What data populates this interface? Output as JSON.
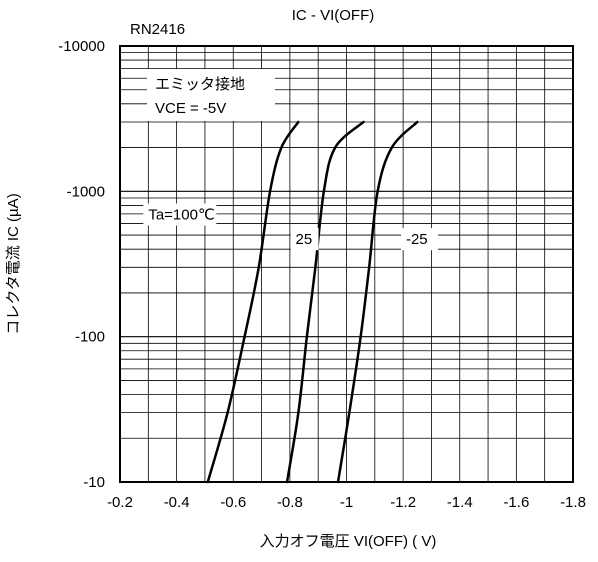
{
  "chart_data": {
    "type": "line",
    "title": "IC - VI(OFF)",
    "subtitle": "RN2416",
    "xlabel": "入力オフ電圧 VI(OFF) ( V)",
    "ylabel": "コレクタ電流 IC (µA)",
    "xlim": [
      -0.2,
      -1.8
    ],
    "ylim": [
      -10,
      -10000
    ],
    "yscale": "log",
    "grid": true,
    "x_ticks": [
      -0.2,
      -0.4,
      -0.6,
      -0.8,
      -1.0,
      -1.2,
      -1.4,
      -1.6,
      -1.8
    ],
    "x_tick_labels": [
      "-0.2",
      "-0.4",
      "-0.6",
      "-0.8",
      "-1",
      "-1.2",
      "-1.4",
      "-1.6",
      "-1.8"
    ],
    "y_ticks": [
      -10,
      -100,
      -1000,
      -10000
    ],
    "y_tick_labels": [
      "-10",
      "-100",
      "-1000",
      "-10000"
    ],
    "condition_lines": [
      "エミッタ接地",
      "VCE = -5V"
    ],
    "series": [
      {
        "name": "Ta=100℃",
        "x": [
          -0.51,
          -0.58,
          -0.64,
          -0.69,
          -0.73,
          -0.77,
          -0.83
        ],
        "y": [
          -10,
          -30,
          -100,
          -300,
          -1000,
          -2000,
          -3000
        ]
      },
      {
        "name": "25",
        "x": [
          -0.79,
          -0.83,
          -0.86,
          -0.89,
          -0.92,
          -0.96,
          -1.06
        ],
        "y": [
          -10,
          -30,
          -100,
          -300,
          -1000,
          -2000,
          -3000
        ]
      },
      {
        "name": "-25",
        "x": [
          -0.97,
          -1.01,
          -1.05,
          -1.08,
          -1.11,
          -1.16,
          -1.25
        ],
        "y": [
          -10,
          -30,
          -100,
          -300,
          -1000,
          -2000,
          -3000
        ]
      }
    ],
    "annotations": [
      {
        "text": "Ta=100℃",
        "x": -0.3,
        "y": -650
      },
      {
        "text": "25",
        "x": -0.82,
        "y": -440
      },
      {
        "text": "-25",
        "x": -1.21,
        "y": -440
      }
    ]
  }
}
